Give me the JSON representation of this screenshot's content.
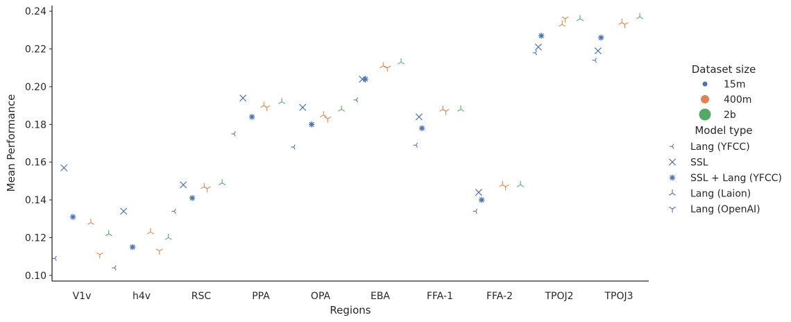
{
  "chart_data": {
    "type": "scatter",
    "title": "",
    "xlabel": "Regions",
    "ylabel": "Mean Performance",
    "categories": [
      "V1v",
      "h4v",
      "RSC",
      "PPA",
      "OPA",
      "EBA",
      "FFA-1",
      "FFA-2",
      "TPOJ2",
      "TPOJ3"
    ],
    "ylim": [
      0.097,
      0.243
    ],
    "yticks": [
      "0.10",
      "0.12",
      "0.14",
      "0.16",
      "0.18",
      "0.20",
      "0.22",
      "0.24"
    ],
    "grid": false,
    "legend_position": "right",
    "size_legend": {
      "title": "Dataset size",
      "entries": [
        {
          "label": "15m",
          "color": "#4c72b0"
        },
        {
          "label": "400m",
          "color": "#dd8452"
        },
        {
          "label": "2b",
          "color": "#55a868"
        }
      ]
    },
    "model_legend": {
      "title": "Model type",
      "entries": [
        {
          "label": "Lang (YFCC)",
          "marker": "tri_left"
        },
        {
          "label": "SSL",
          "marker": "x"
        },
        {
          "label": "SSL + Lang (YFCC)",
          "marker": "star"
        },
        {
          "label": "Lang (Laion)",
          "marker": "tri_up"
        },
        {
          "label": "Lang (OpenAI)",
          "marker": "tri_down"
        }
      ]
    },
    "points": [
      {
        "region": "V1v",
        "offset": -0.45,
        "marker": "tri_left",
        "size": "15m",
        "y": 0.109
      },
      {
        "region": "V1v",
        "offset": -0.3,
        "marker": "x",
        "size": "15m",
        "y": 0.157
      },
      {
        "region": "V1v",
        "offset": -0.15,
        "marker": "star",
        "size": "15m",
        "y": 0.131
      },
      {
        "region": "V1v",
        "offset": 0.15,
        "marker": "tri_up",
        "size": "400m",
        "y": 0.128
      },
      {
        "region": "V1v",
        "offset": 0.3,
        "marker": "tri_down",
        "size": "400m",
        "y": 0.111
      },
      {
        "region": "V1v",
        "offset": 0.45,
        "marker": "tri_up",
        "size": "2b",
        "y": 0.122
      },
      {
        "region": "h4v",
        "offset": -0.45,
        "marker": "tri_left",
        "size": "15m",
        "y": 0.104
      },
      {
        "region": "h4v",
        "offset": -0.3,
        "marker": "x",
        "size": "15m",
        "y": 0.134
      },
      {
        "region": "h4v",
        "offset": -0.15,
        "marker": "star",
        "size": "15m",
        "y": 0.115
      },
      {
        "region": "h4v",
        "offset": 0.15,
        "marker": "tri_up",
        "size": "400m",
        "y": 0.123
      },
      {
        "region": "h4v",
        "offset": 0.3,
        "marker": "tri_down",
        "size": "400m",
        "y": 0.113
      },
      {
        "region": "h4v",
        "offset": 0.45,
        "marker": "tri_up",
        "size": "2b",
        "y": 0.12
      },
      {
        "region": "RSC",
        "offset": -0.45,
        "marker": "tri_left",
        "size": "15m",
        "y": 0.134
      },
      {
        "region": "RSC",
        "offset": -0.3,
        "marker": "x",
        "size": "15m",
        "y": 0.148
      },
      {
        "region": "RSC",
        "offset": -0.15,
        "marker": "star",
        "size": "15m",
        "y": 0.141
      },
      {
        "region": "RSC",
        "offset": 0.05,
        "marker": "tri_up",
        "size": "400m",
        "y": 0.147
      },
      {
        "region": "RSC",
        "offset": 0.1,
        "marker": "tri_down",
        "size": "400m",
        "y": 0.146
      },
      {
        "region": "RSC",
        "offset": 0.35,
        "marker": "tri_up",
        "size": "2b",
        "y": 0.149
      },
      {
        "region": "PPA",
        "offset": -0.45,
        "marker": "tri_left",
        "size": "15m",
        "y": 0.175
      },
      {
        "region": "PPA",
        "offset": -0.3,
        "marker": "x",
        "size": "15m",
        "y": 0.194
      },
      {
        "region": "PPA",
        "offset": -0.15,
        "marker": "star",
        "size": "15m",
        "y": 0.184
      },
      {
        "region": "PPA",
        "offset": 0.05,
        "marker": "tri_up",
        "size": "400m",
        "y": 0.19
      },
      {
        "region": "PPA",
        "offset": 0.1,
        "marker": "tri_down",
        "size": "400m",
        "y": 0.189
      },
      {
        "region": "PPA",
        "offset": 0.35,
        "marker": "tri_up",
        "size": "2b",
        "y": 0.192
      },
      {
        "region": "OPA",
        "offset": -0.45,
        "marker": "tri_left",
        "size": "15m",
        "y": 0.168
      },
      {
        "region": "OPA",
        "offset": -0.3,
        "marker": "x",
        "size": "15m",
        "y": 0.189
      },
      {
        "region": "OPA",
        "offset": -0.15,
        "marker": "star",
        "size": "15m",
        "y": 0.18
      },
      {
        "region": "OPA",
        "offset": 0.05,
        "marker": "tri_up",
        "size": "400m",
        "y": 0.185
      },
      {
        "region": "OPA",
        "offset": 0.12,
        "marker": "tri_down",
        "size": "400m",
        "y": 0.183
      },
      {
        "region": "OPA",
        "offset": 0.35,
        "marker": "tri_up",
        "size": "2b",
        "y": 0.188
      },
      {
        "region": "EBA",
        "offset": -0.4,
        "marker": "tri_left",
        "size": "15m",
        "y": 0.193
      },
      {
        "region": "EBA",
        "offset": -0.3,
        "marker": "x",
        "size": "15m",
        "y": 0.204
      },
      {
        "region": "EBA",
        "offset": -0.25,
        "marker": "star",
        "size": "15m",
        "y": 0.204
      },
      {
        "region": "EBA",
        "offset": 0.05,
        "marker": "tri_up",
        "size": "400m",
        "y": 0.211
      },
      {
        "region": "EBA",
        "offset": 0.12,
        "marker": "tri_down",
        "size": "400m",
        "y": 0.21
      },
      {
        "region": "EBA",
        "offset": 0.35,
        "marker": "tri_up",
        "size": "2b",
        "y": 0.213
      },
      {
        "region": "FFA-1",
        "offset": -0.4,
        "marker": "tri_left",
        "size": "15m",
        "y": 0.169
      },
      {
        "region": "FFA-1",
        "offset": -0.35,
        "marker": "x",
        "size": "15m",
        "y": 0.184
      },
      {
        "region": "FFA-1",
        "offset": -0.3,
        "marker": "star",
        "size": "15m",
        "y": 0.178
      },
      {
        "region": "FFA-1",
        "offset": 0.05,
        "marker": "tri_up",
        "size": "400m",
        "y": 0.188
      },
      {
        "region": "FFA-1",
        "offset": 0.1,
        "marker": "tri_down",
        "size": "400m",
        "y": 0.187
      },
      {
        "region": "FFA-1",
        "offset": 0.35,
        "marker": "tri_up",
        "size": "2b",
        "y": 0.188
      },
      {
        "region": "FFA-2",
        "offset": -0.4,
        "marker": "tri_left",
        "size": "15m",
        "y": 0.134
      },
      {
        "region": "FFA-2",
        "offset": -0.35,
        "marker": "x",
        "size": "15m",
        "y": 0.144
      },
      {
        "region": "FFA-2",
        "offset": -0.3,
        "marker": "star",
        "size": "15m",
        "y": 0.14
      },
      {
        "region": "FFA-2",
        "offset": 0.05,
        "marker": "tri_up",
        "size": "400m",
        "y": 0.148
      },
      {
        "region": "FFA-2",
        "offset": 0.1,
        "marker": "tri_down",
        "size": "400m",
        "y": 0.147
      },
      {
        "region": "FFA-2",
        "offset": 0.35,
        "marker": "tri_up",
        "size": "2b",
        "y": 0.148
      },
      {
        "region": "TPOJ2",
        "offset": -0.4,
        "marker": "tri_left",
        "size": "15m",
        "y": 0.218
      },
      {
        "region": "TPOJ2",
        "offset": -0.35,
        "marker": "x",
        "size": "15m",
        "y": 0.221
      },
      {
        "region": "TPOJ2",
        "offset": -0.3,
        "marker": "star",
        "size": "15m",
        "y": 0.227
      },
      {
        "region": "TPOJ2",
        "offset": 0.05,
        "marker": "tri_up",
        "size": "400m",
        "y": 0.233
      },
      {
        "region": "TPOJ2",
        "offset": 0.1,
        "marker": "tri_down",
        "size": "400m",
        "y": 0.236
      },
      {
        "region": "TPOJ2",
        "offset": 0.35,
        "marker": "tri_up",
        "size": "2b",
        "y": 0.236
      },
      {
        "region": "TPOJ3",
        "offset": -0.4,
        "marker": "tri_left",
        "size": "15m",
        "y": 0.214
      },
      {
        "region": "TPOJ3",
        "offset": -0.35,
        "marker": "x",
        "size": "15m",
        "y": 0.219
      },
      {
        "region": "TPOJ3",
        "offset": -0.3,
        "marker": "star",
        "size": "15m",
        "y": 0.226
      },
      {
        "region": "TPOJ3",
        "offset": 0.05,
        "marker": "tri_up",
        "size": "400m",
        "y": 0.234
      },
      {
        "region": "TPOJ3",
        "offset": 0.1,
        "marker": "tri_down",
        "size": "400m",
        "y": 0.233
      },
      {
        "region": "TPOJ3",
        "offset": 0.35,
        "marker": "tri_up",
        "size": "2b",
        "y": 0.237
      }
    ]
  }
}
